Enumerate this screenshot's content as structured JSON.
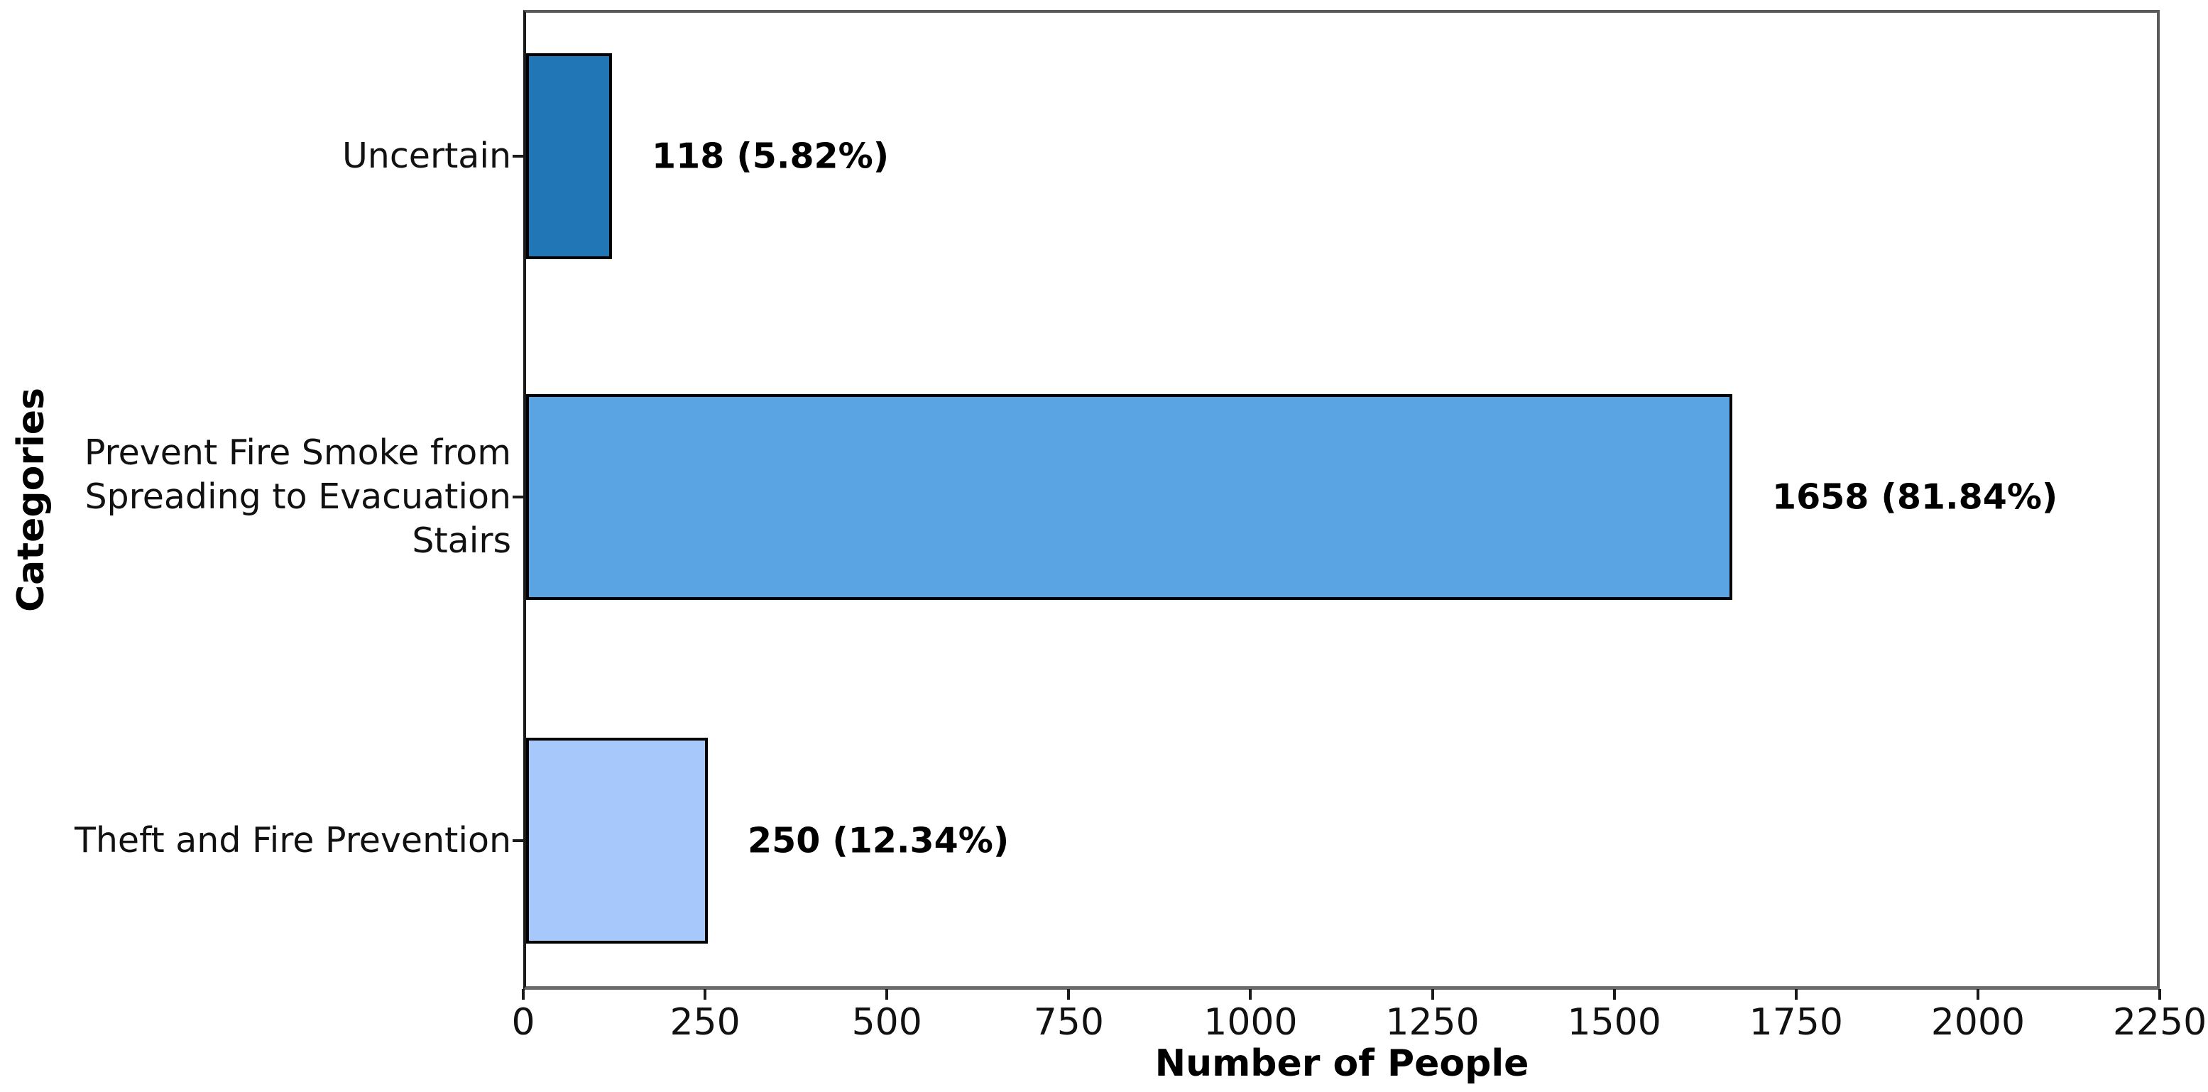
{
  "chart_data": {
    "type": "bar",
    "orientation": "horizontal",
    "xlabel": "Number of People",
    "ylabel": "Categories",
    "xlim": [
      0,
      2250
    ],
    "xticks": [
      0,
      250,
      500,
      750,
      1000,
      1250,
      1500,
      1750,
      2000,
      2250
    ],
    "grid": false,
    "legend": false,
    "bar_edge_color": "#000000",
    "categories": [
      "Uncertain",
      "Prevent Fire Smoke from Spreading to Evacuation Stairs",
      "Theft and Fire Prevention"
    ],
    "values": [
      118,
      1658,
      250
    ],
    "percents": [
      5.82,
      81.84,
      12.34
    ],
    "bars": [
      {
        "category": "Uncertain",
        "category_lines": [
          "Uncertain"
        ],
        "value": 118,
        "percent": 5.82,
        "label": "118 (5.82%)",
        "color": "#2176B5"
      },
      {
        "category": "Prevent Fire Smoke from Spreading to Evacuation Stairs",
        "category_lines": [
          "Prevent Fire Smoke from",
          "Spreading to Evacuation",
          "Stairs"
        ],
        "value": 1658,
        "percent": 81.84,
        "label": "1658 (81.84%)",
        "color": "#5BA4E3"
      },
      {
        "category": "Theft and Fire Prevention",
        "category_lines": [
          "Theft and Fire Prevention"
        ],
        "value": 250,
        "percent": 12.34,
        "label": "250 (12.34%)",
        "color": "#A7C8FA"
      }
    ]
  }
}
